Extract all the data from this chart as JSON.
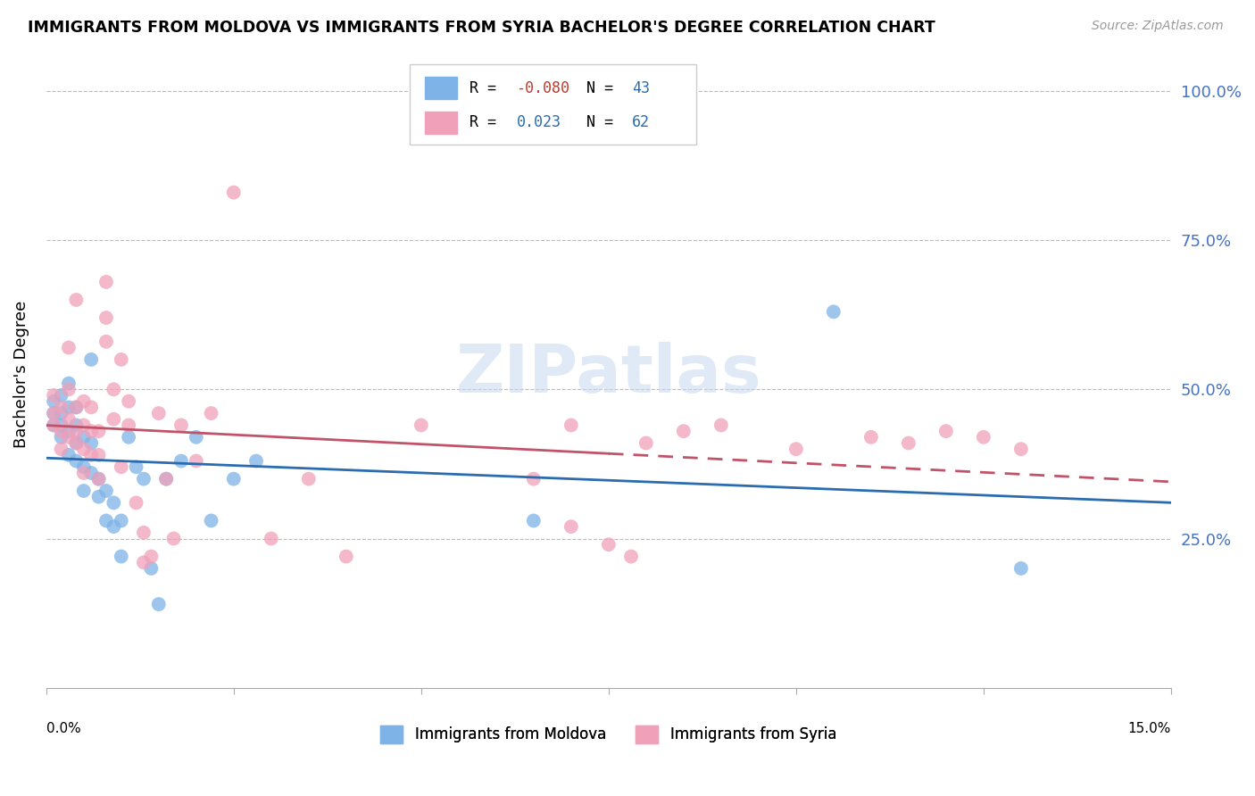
{
  "title": "IMMIGRANTS FROM MOLDOVA VS IMMIGRANTS FROM SYRIA BACHELOR'S DEGREE CORRELATION CHART",
  "source": "Source: ZipAtlas.com",
  "ylabel": "Bachelor's Degree",
  "ytick_labels": [
    "100.0%",
    "75.0%",
    "50.0%",
    "25.0%"
  ],
  "ytick_values": [
    1.0,
    0.75,
    0.5,
    0.25
  ],
  "xlim": [
    0.0,
    0.15
  ],
  "ylim": [
    0.0,
    1.05
  ],
  "legend_r_moldova": "-0.080",
  "legend_n_moldova": "43",
  "legend_r_syria": "0.023",
  "legend_n_syria": "62",
  "moldova_color": "#7EB3E8",
  "syria_color": "#F0A0B8",
  "moldova_line_color": "#2B6CB0",
  "syria_line_color": "#C0536A",
  "moldova_x": [
    0.001,
    0.001,
    0.001,
    0.002,
    0.002,
    0.002,
    0.002,
    0.003,
    0.003,
    0.003,
    0.003,
    0.004,
    0.004,
    0.004,
    0.004,
    0.005,
    0.005,
    0.005,
    0.006,
    0.006,
    0.006,
    0.007,
    0.007,
    0.008,
    0.008,
    0.009,
    0.009,
    0.01,
    0.01,
    0.011,
    0.012,
    0.013,
    0.014,
    0.015,
    0.016,
    0.018,
    0.02,
    0.022,
    0.025,
    0.028,
    0.065,
    0.105,
    0.13
  ],
  "moldova_y": [
    0.44,
    0.46,
    0.48,
    0.42,
    0.44,
    0.46,
    0.49,
    0.39,
    0.43,
    0.47,
    0.51,
    0.38,
    0.41,
    0.44,
    0.47,
    0.33,
    0.37,
    0.42,
    0.36,
    0.41,
    0.55,
    0.32,
    0.35,
    0.28,
    0.33,
    0.27,
    0.31,
    0.22,
    0.28,
    0.42,
    0.37,
    0.35,
    0.2,
    0.14,
    0.35,
    0.38,
    0.42,
    0.28,
    0.35,
    0.38,
    0.28,
    0.63,
    0.2
  ],
  "syria_x": [
    0.001,
    0.001,
    0.001,
    0.002,
    0.002,
    0.002,
    0.003,
    0.003,
    0.003,
    0.003,
    0.004,
    0.004,
    0.004,
    0.004,
    0.005,
    0.005,
    0.005,
    0.005,
    0.006,
    0.006,
    0.006,
    0.007,
    0.007,
    0.007,
    0.008,
    0.008,
    0.008,
    0.009,
    0.009,
    0.01,
    0.01,
    0.011,
    0.011,
    0.012,
    0.013,
    0.013,
    0.014,
    0.015,
    0.016,
    0.017,
    0.018,
    0.02,
    0.022,
    0.025,
    0.03,
    0.035,
    0.04,
    0.05,
    0.065,
    0.07,
    0.075,
    0.078,
    0.09,
    0.1,
    0.11,
    0.115,
    0.12,
    0.125,
    0.13,
    0.07,
    0.08,
    0.085
  ],
  "syria_y": [
    0.44,
    0.46,
    0.49,
    0.4,
    0.43,
    0.47,
    0.42,
    0.45,
    0.5,
    0.57,
    0.41,
    0.43,
    0.47,
    0.65,
    0.36,
    0.4,
    0.44,
    0.48,
    0.39,
    0.43,
    0.47,
    0.35,
    0.39,
    0.43,
    0.58,
    0.62,
    0.68,
    0.45,
    0.5,
    0.37,
    0.55,
    0.44,
    0.48,
    0.31,
    0.21,
    0.26,
    0.22,
    0.46,
    0.35,
    0.25,
    0.44,
    0.38,
    0.46,
    0.83,
    0.25,
    0.35,
    0.22,
    0.44,
    0.35,
    0.27,
    0.24,
    0.22,
    0.44,
    0.4,
    0.42,
    0.41,
    0.43,
    0.42,
    0.4,
    0.44,
    0.41,
    0.43
  ]
}
